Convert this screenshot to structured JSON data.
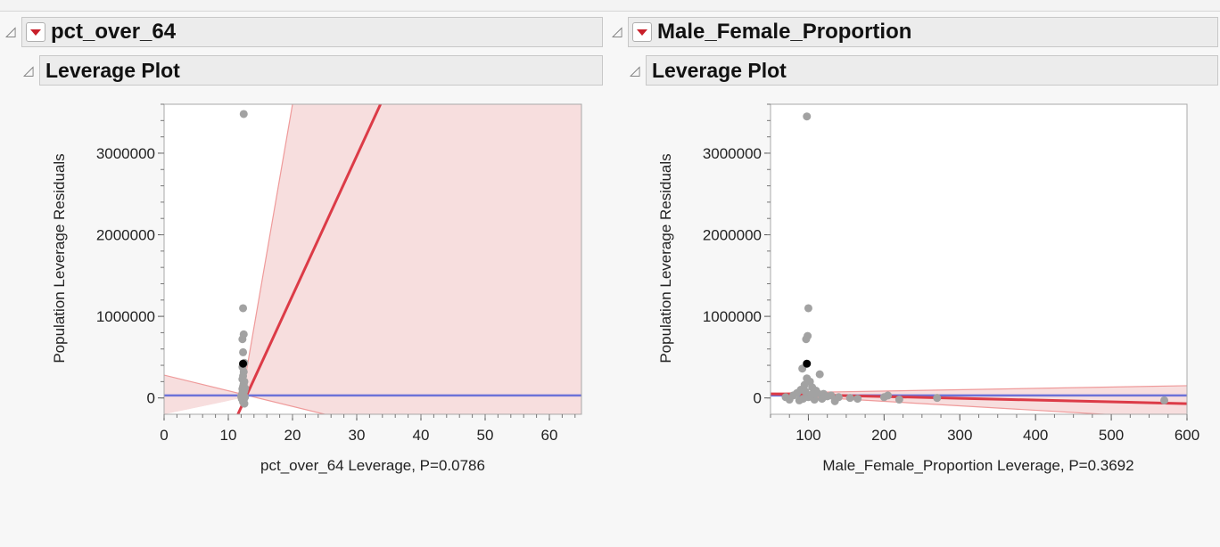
{
  "panels": [
    {
      "title": "pct_over_64",
      "subtitle": "Leverage Plot"
    },
    {
      "title": "Male_Female_Proportion",
      "subtitle": "Leverage Plot"
    }
  ],
  "chart_data": [
    {
      "type": "scatter",
      "title": "",
      "xlabel": "pct_over_64 Leverage, P=0.0786",
      "ylabel": "Population Leverage Residuals",
      "xlim": [
        0,
        65
      ],
      "ylim": [
        -200000,
        3600000
      ],
      "xticks": [
        0,
        10,
        20,
        30,
        40,
        50,
        60
      ],
      "yticks": [
        0,
        1000000,
        2000000,
        3000000
      ],
      "mean_line": 30000,
      "fit_line": {
        "p1": [
          11.5,
          -200000
        ],
        "p2": [
          33.7,
          3600000
        ]
      },
      "confidence_band_upper": {
        "p1": [
          12.1,
          0
        ],
        "p2": [
          20.0,
          3600000
        ]
      },
      "confidence_band_lower": {
        "p1": [
          0,
          280000
        ],
        "p2": [
          25.0,
          -200000
        ]
      },
      "points": [
        [
          12.4,
          3480000
        ],
        [
          12.3,
          1100000
        ],
        [
          12.4,
          780000
        ],
        [
          12.2,
          720000
        ],
        [
          12.3,
          560000
        ],
        [
          12.5,
          430000
        ],
        [
          12.2,
          380000
        ],
        [
          12.4,
          320000
        ],
        [
          12.3,
          270000
        ],
        [
          12.2,
          230000
        ],
        [
          12.5,
          200000
        ],
        [
          12.4,
          170000
        ],
        [
          12.3,
          140000
        ],
        [
          12.2,
          110000
        ],
        [
          12.5,
          90000
        ],
        [
          12.4,
          70000
        ],
        [
          12.3,
          50000
        ],
        [
          12.2,
          30000
        ],
        [
          12.6,
          10000
        ],
        [
          12.1,
          -10000
        ],
        [
          12.4,
          -30000
        ],
        [
          12.3,
          -50000
        ],
        [
          12.5,
          -70000
        ],
        [
          12.2,
          60000
        ],
        [
          12.6,
          120000
        ],
        [
          12.0,
          20000
        ]
      ],
      "highlight_point": [
        12.3,
        420000
      ]
    },
    {
      "type": "scatter",
      "title": "",
      "xlabel": "Male_Female_Proportion Leverage, P=0.3692",
      "ylabel": "Population Leverage Residuals",
      "xlim": [
        50,
        600
      ],
      "ylim": [
        -200000,
        3600000
      ],
      "xticks": [
        100,
        200,
        300,
        400,
        500,
        600
      ],
      "yticks": [
        0,
        1000000,
        2000000,
        3000000
      ],
      "mean_line": 30000,
      "fit_line": {
        "p1": [
          50,
          50000
        ],
        "p2": [
          600,
          -70000
        ]
      },
      "confidence_band_upper": {
        "p1": [
          50,
          60000
        ],
        "p2": [
          600,
          150000
        ]
      },
      "confidence_band_lower": {
        "p1": [
          50,
          40000
        ],
        "p2": [
          600,
          -260000
        ]
      },
      "points": [
        [
          98,
          3450000
        ],
        [
          100,
          1100000
        ],
        [
          99,
          760000
        ],
        [
          97,
          720000
        ],
        [
          115,
          290000
        ],
        [
          92,
          360000
        ],
        [
          98,
          240000
        ],
        [
          102,
          200000
        ],
        [
          95,
          160000
        ],
        [
          105,
          130000
        ],
        [
          90,
          100000
        ],
        [
          110,
          90000
        ],
        [
          85,
          60000
        ],
        [
          120,
          50000
        ],
        [
          80,
          30000
        ],
        [
          125,
          20000
        ],
        [
          100,
          10000
        ],
        [
          93,
          -10000
        ],
        [
          108,
          -20000
        ],
        [
          88,
          -30000
        ],
        [
          130,
          30000
        ],
        [
          140,
          10000
        ],
        [
          155,
          0
        ],
        [
          165,
          -10000
        ],
        [
          200,
          10000
        ],
        [
          205,
          30000
        ],
        [
          220,
          -20000
        ],
        [
          270,
          0
        ],
        [
          570,
          -30000
        ],
        [
          75,
          -20000
        ],
        [
          70,
          10000
        ],
        [
          135,
          -40000
        ],
        [
          112,
          60000
        ],
        [
          96,
          80000
        ],
        [
          104,
          40000
        ],
        [
          118,
          -10000
        ]
      ],
      "highlight_point": [
        98,
        420000
      ]
    }
  ]
}
